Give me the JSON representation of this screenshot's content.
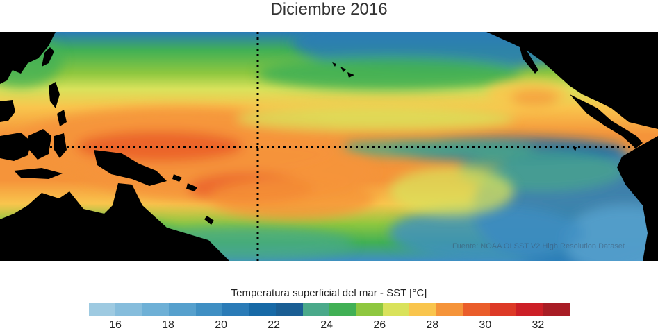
{
  "title": "Diciembre 2016",
  "source_note": "Fuente: NOAA OI SST V2 High Resolution Dataset",
  "colorbar": {
    "label": "Temperatura superficial del mar - SST  [°C]",
    "min": 15,
    "max": 33.2,
    "tick_labels": [
      "16",
      "18",
      "20",
      "22",
      "24",
      "26",
      "28",
      "30",
      "32"
    ],
    "tick_values": [
      16,
      18,
      20,
      22,
      24,
      26,
      28,
      30,
      32
    ],
    "colors": [
      "#9ecae1",
      "#86bddc",
      "#6eb0d6",
      "#56a0cd",
      "#3f8fc3",
      "#2a7bb7",
      "#1769a6",
      "#1a5e94",
      "#4aa98a",
      "#41b055",
      "#8ec73f",
      "#d9e25b",
      "#f9c54d",
      "#f5943a",
      "#ea5d2a",
      "#dd3a27",
      "#cc1f27",
      "#a81d25"
    ]
  },
  "map": {
    "land_color": "#000000",
    "equator_line": "dotted",
    "dateline": "dotted"
  }
}
